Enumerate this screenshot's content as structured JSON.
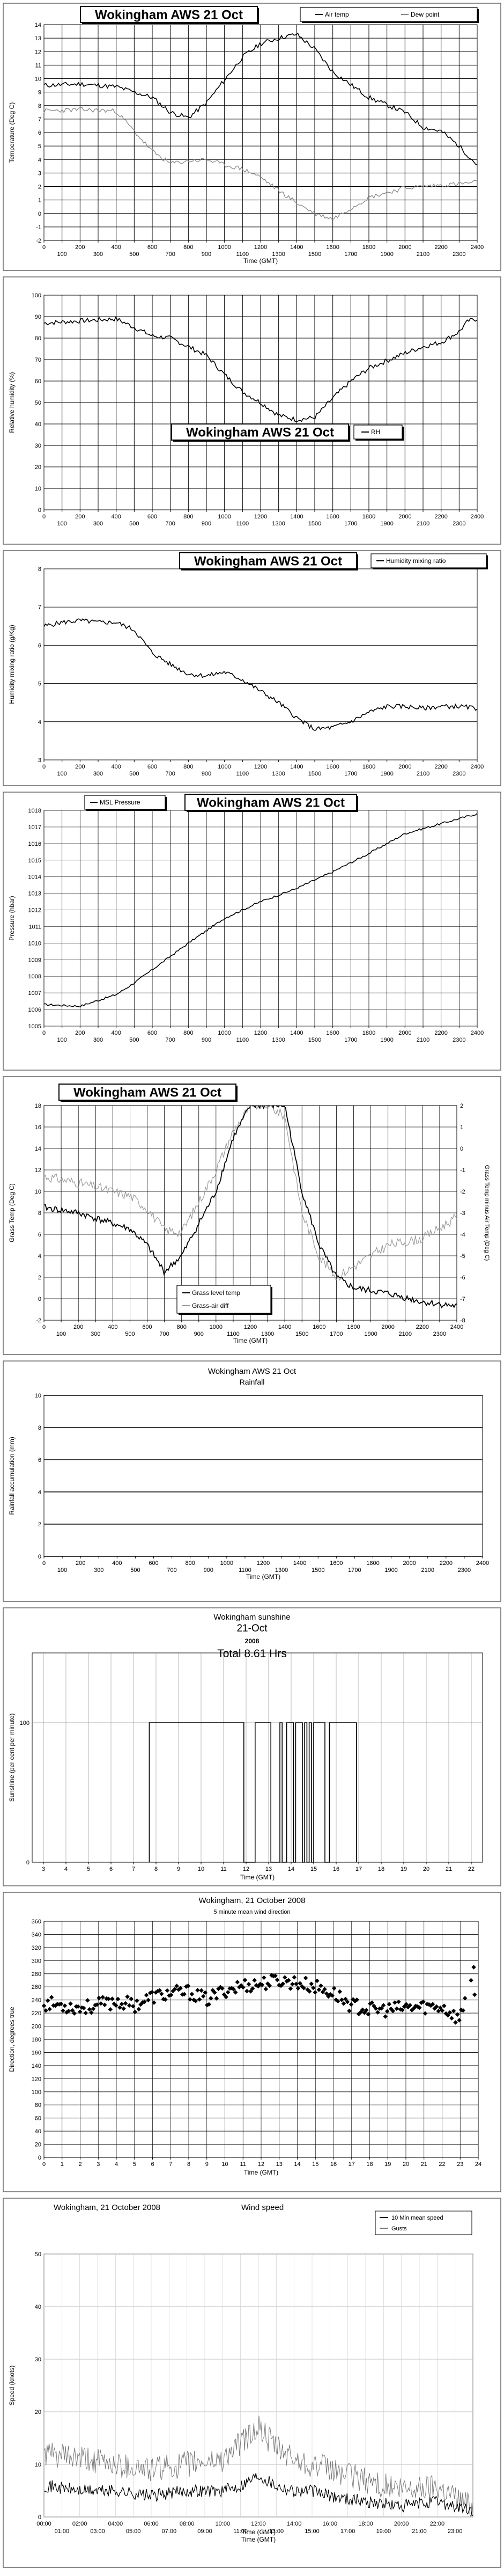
{
  "chart_data": [
    {
      "type": "line",
      "title": "Wokingham AWS 21 Oct",
      "xlabel": "Time (GMT)",
      "ylabel": "Temperature (Deg C)",
      "xlim": [
        0,
        2400
      ],
      "ylim": [
        -2,
        14
      ],
      "x_ticks": [
        "0",
        "100",
        "200",
        "300",
        "400",
        "500",
        "600",
        "700",
        "800",
        "900",
        "1000",
        "1100",
        "1200",
        "1300",
        "1400",
        "1500",
        "1600",
        "1700",
        "1800",
        "1900",
        "2000",
        "2100",
        "2200",
        "2300",
        "2400"
      ],
      "y_ticks": [
        "-2",
        "-1",
        "0",
        "1",
        "2",
        "3",
        "4",
        "5",
        "6",
        "7",
        "8",
        "9",
        "10",
        "11",
        "12",
        "13",
        "14"
      ],
      "legend": "top-right",
      "series": [
        {
          "name": "Air temp",
          "color": "#000000",
          "x": [
            0,
            200,
            400,
            600,
            700,
            800,
            900,
            1000,
            1100,
            1200,
            1300,
            1400,
            1500,
            1600,
            1800,
            2000,
            2100,
            2200,
            2300,
            2400
          ],
          "y": [
            9.5,
            9.6,
            9.4,
            8.6,
            7.5,
            7.1,
            8.2,
            9.9,
            11.6,
            12.6,
            13.0,
            13.3,
            12.2,
            10.5,
            8.6,
            7.5,
            6.4,
            6.1,
            5.0,
            3.6
          ]
        },
        {
          "name": "Dew point",
          "color": "#888888",
          "x": [
            0,
            200,
            400,
            600,
            700,
            800,
            900,
            1000,
            1100,
            1200,
            1300,
            1400,
            1500,
            1600,
            1800,
            2000,
            2100,
            2200,
            2300,
            2400
          ],
          "y": [
            7.6,
            7.7,
            7.6,
            4.6,
            3.7,
            3.9,
            4.0,
            3.6,
            3.3,
            2.7,
            1.7,
            0.8,
            0.0,
            -0.4,
            1.2,
            1.9,
            2.0,
            2.1,
            2.2,
            2.3
          ]
        }
      ]
    },
    {
      "type": "line",
      "title": "Wokingham AWS 21 Oct",
      "xlabel": "",
      "ylabel": "Relative humidity (%)",
      "xlim": [
        0,
        2400
      ],
      "ylim": [
        0,
        100
      ],
      "x_ticks": [
        "0",
        "100",
        "200",
        "300",
        "400",
        "500",
        "600",
        "700",
        "800",
        "900",
        "1000",
        "1100",
        "1200",
        "1300",
        "1400",
        "1500",
        "1600",
        "1700",
        "1800",
        "1900",
        "2000",
        "2100",
        "2200",
        "2300",
        "2400"
      ],
      "y_ticks": [
        "0",
        "10",
        "20",
        "30",
        "40",
        "50",
        "60",
        "70",
        "80",
        "90",
        "100"
      ],
      "legend": "bottom",
      "series": [
        {
          "name": "RH",
          "color": "#000000",
          "x": [
            0,
            200,
            400,
            600,
            700,
            800,
            900,
            1000,
            1100,
            1200,
            1300,
            1400,
            1500,
            1600,
            1700,
            1800,
            2000,
            2100,
            2200,
            2300,
            2350,
            2400
          ],
          "y": [
            87,
            88,
            89,
            81,
            80,
            76,
            72,
            63,
            55,
            50,
            44,
            42,
            43,
            52,
            60,
            66,
            73,
            76,
            78,
            83,
            88,
            89
          ]
        }
      ]
    },
    {
      "type": "line",
      "title": "Wokingham AWS 21 Oct",
      "xlabel": "",
      "ylabel": "Humidity mixing ratio (g/Kg)",
      "xlim": [
        0,
        2400
      ],
      "ylim": [
        3,
        8
      ],
      "x_ticks": [
        "0",
        "100",
        "200",
        "300",
        "400",
        "500",
        "600",
        "700",
        "800",
        "900",
        "1000",
        "1100",
        "1200",
        "1300",
        "1400",
        "1500",
        "1600",
        "1700",
        "1800",
        "1900",
        "2000",
        "2100",
        "2200",
        "2300",
        "2400"
      ],
      "y_ticks": [
        "3",
        "4",
        "5",
        "6",
        "7",
        "8"
      ],
      "legend": "top-right",
      "series": [
        {
          "name": "Humidity mixing ratio",
          "color": "#000000",
          "x": [
            0,
            100,
            200,
            300,
            400,
            500,
            600,
            700,
            800,
            900,
            1000,
            1100,
            1200,
            1300,
            1400,
            1500,
            1600,
            1700,
            1800,
            1900,
            2000,
            2100,
            2200,
            2300,
            2400
          ],
          "y": [
            6.5,
            6.6,
            6.65,
            6.6,
            6.6,
            6.4,
            5.8,
            5.5,
            5.25,
            5.2,
            5.3,
            5.1,
            4.8,
            4.5,
            4.1,
            3.8,
            3.85,
            4.0,
            4.25,
            4.4,
            4.4,
            4.35,
            4.4,
            4.4,
            4.35
          ]
        }
      ]
    },
    {
      "type": "line",
      "title": "Wokingham AWS 21 Oct",
      "xlabel": "",
      "ylabel": "Pressure (hbar)",
      "xlim": [
        0,
        2400
      ],
      "ylim": [
        1005,
        1018
      ],
      "x_ticks": [
        "0",
        "100",
        "200",
        "300",
        "400",
        "500",
        "600",
        "700",
        "800",
        "900",
        "1000",
        "1100",
        "1200",
        "1300",
        "1400",
        "1500",
        "1600",
        "1700",
        "1800",
        "1900",
        "2000",
        "2100",
        "2200",
        "2300",
        "2400"
      ],
      "y_ticks": [
        "1005",
        "1006",
        "1007",
        "1008",
        "1009",
        "1010",
        "1011",
        "1012",
        "1013",
        "1014",
        "1015",
        "1016",
        "1017",
        "1018"
      ],
      "legend": "top-left",
      "series": [
        {
          "name": "MSL Pressure",
          "color": "#000000",
          "x": [
            0,
            200,
            400,
            500,
            600,
            800,
            1000,
            1200,
            1400,
            1600,
            1800,
            2000,
            2200,
            2400
          ],
          "y": [
            1006.3,
            1006.2,
            1006.9,
            1007.6,
            1008.4,
            1010.0,
            1011.5,
            1012.5,
            1013.3,
            1014.3,
            1015.4,
            1016.6,
            1017.2,
            1017.8
          ]
        }
      ]
    },
    {
      "type": "line",
      "title": "Wokingham AWS 21 Oct",
      "xlabel": "Time (GMT)",
      "ylabel": "Grass Temp (Deg C)",
      "y2label": "Grass Temp minus Air Temp (Deg C)",
      "xlim": [
        0,
        2400
      ],
      "ylim": [
        -2,
        18
      ],
      "y2lim": [
        -8,
        2
      ],
      "x_ticks": [
        "0",
        "100",
        "200",
        "300",
        "400",
        "500",
        "600",
        "700",
        "800",
        "900",
        "1000",
        "1100",
        "1200",
        "1300",
        "1400",
        "1500",
        "1600",
        "1700",
        "1800",
        "1900",
        "2000",
        "2100",
        "2200",
        "2300",
        "2400"
      ],
      "y_ticks": [
        "-2",
        "0",
        "2",
        "4",
        "6",
        "8",
        "10",
        "12",
        "14",
        "16",
        "18"
      ],
      "y2_ticks": [
        "-8",
        "-7",
        "-6",
        "-5",
        "-4",
        "-3",
        "-2",
        "-1",
        "0",
        "1",
        "2"
      ],
      "legend": "bottom-center",
      "series": [
        {
          "name": "Grass level temp",
          "color": "#000000",
          "axis": "left",
          "x": [
            0,
            200,
            400,
            500,
            600,
            700,
            800,
            900,
            1000,
            1100,
            1200,
            1300,
            1400,
            1500,
            1600,
            1700,
            1800,
            2000,
            2200,
            2400
          ],
          "y": [
            8.5,
            8.0,
            7.0,
            6.5,
            5.0,
            2.5,
            4.0,
            7.0,
            10.0,
            15.0,
            18.0,
            18.0,
            18.0,
            10.0,
            5.0,
            2.0,
            1.0,
            0.5,
            -0.3,
            -0.7
          ]
        },
        {
          "name": "Grass-air diff",
          "color": "#999999",
          "axis": "right",
          "x": [
            0,
            200,
            400,
            500,
            600,
            700,
            800,
            900,
            1000,
            1100,
            1200,
            1300,
            1400,
            1500,
            1600,
            1700,
            1800,
            2000,
            2200,
            2400
          ],
          "y": [
            -1.3,
            -1.6,
            -2.0,
            -2.2,
            -2.8,
            -3.8,
            -3.9,
            -2.5,
            -1.0,
            0.8,
            2.0,
            2.0,
            1.5,
            -3.0,
            -5.0,
            -6.0,
            -5.5,
            -4.5,
            -4.2,
            -3.2
          ]
        }
      ]
    },
    {
      "type": "line",
      "title": "Wokingham AWS 21 Oct",
      "subtitle": "Rainfall",
      "xlabel": "Time (GMT)",
      "ylabel": "Rainfall accumulation (mm)",
      "xlim": [
        0,
        2400
      ],
      "ylim": [
        0,
        10
      ],
      "x_ticks": [
        "0",
        "100",
        "200",
        "300",
        "400",
        "500",
        "600",
        "700",
        "800",
        "900",
        "1000",
        "1100",
        "1200",
        "1300",
        "1400",
        "1500",
        "1600",
        "1700",
        "1800",
        "1900",
        "2000",
        "2100",
        "2200",
        "2300",
        "2400"
      ],
      "y_ticks": [
        "0",
        "2",
        "4",
        "6",
        "8",
        "10"
      ],
      "series": []
    },
    {
      "type": "line",
      "title": "Wokingham sunshine",
      "subtitle": "21-Oct",
      "year": "2008",
      "total": "Total 8.61 Hrs",
      "xlabel": "Time (GMT)",
      "ylabel": "Sunshine (per cent per minute)",
      "xlim": [
        2.5,
        22.5
      ],
      "ylim": [
        0,
        150
      ],
      "x_ticks": [
        "3",
        "4",
        "5",
        "6",
        "7",
        "8",
        "9",
        "10",
        "11",
        "12",
        "13",
        "14",
        "15",
        "16",
        "17",
        "18",
        "19",
        "20",
        "21",
        "22"
      ],
      "y_ticks": [
        "0",
        "100"
      ],
      "sunshine_segments": [
        [
          7.7,
          11.9
        ],
        [
          12.4,
          13.1
        ],
        [
          13.5,
          13.6
        ],
        [
          13.8,
          14.1
        ],
        [
          14.2,
          14.5
        ],
        [
          14.6,
          14.7
        ],
        [
          14.8,
          14.9
        ],
        [
          15.0,
          15.5
        ],
        [
          15.7,
          16.9
        ]
      ],
      "series": [
        {
          "name": "",
          "color": "#000000",
          "x": [
            7.7,
            11.9,
            12.4,
            13.1,
            13.5,
            13.6,
            13.8,
            14.1,
            14.2,
            14.5,
            14.6,
            14.7,
            14.8,
            14.9,
            15.0,
            15.5,
            15.7,
            16.9
          ],
          "y": [
            100,
            100,
            100,
            100,
            100,
            100,
            100,
            100,
            100,
            100,
            100,
            100,
            100,
            100,
            100,
            100,
            100,
            100
          ]
        }
      ]
    },
    {
      "type": "scatter",
      "title": "Wokingham,  21 October 2008",
      "subtitle": "5 minute mean wind direction",
      "xlabel": "Time (GMT)",
      "ylabel": "Direction, degrees true",
      "xlim": [
        0,
        24
      ],
      "ylim": [
        0,
        360
      ],
      "x_ticks": [
        "0",
        "1",
        "2",
        "3",
        "4",
        "5",
        "6",
        "7",
        "8",
        "9",
        "10",
        "11",
        "12",
        "13",
        "14",
        "15",
        "16",
        "17",
        "18",
        "19",
        "20",
        "21",
        "22",
        "23",
        "24"
      ],
      "y_ticks": [
        "0",
        "20",
        "40",
        "60",
        "80",
        "100",
        "120",
        "140",
        "160",
        "180",
        "200",
        "220",
        "240",
        "260",
        "280",
        "300",
        "320",
        "340",
        "360"
      ],
      "series": [
        {
          "name": "",
          "color": "#000000",
          "x": [
            0,
            1,
            2,
            3,
            4,
            5,
            6,
            7,
            8,
            9,
            10,
            11,
            12,
            13,
            14,
            15,
            16,
            17,
            18,
            19,
            20,
            21,
            22,
            22.5,
            23,
            23.5,
            24
          ],
          "y": [
            235,
            232,
            228,
            232,
            238,
            232,
            245,
            250,
            252,
            240,
            255,
            262,
            265,
            270,
            266,
            260,
            250,
            232,
            225,
            225,
            228,
            230,
            230,
            220,
            210,
            270,
            280
          ]
        }
      ]
    },
    {
      "type": "line",
      "title": "Wokingham,  21 October 2008",
      "subtitle": "Wind speed",
      "xlabel": "Time (GMT)",
      "ylabel": "Speed (knots)",
      "xlim": [
        0,
        24
      ],
      "ylim": [
        0,
        50
      ],
      "x_ticks_top": [
        "00:00",
        "02:00",
        "04:00",
        "06:00",
        "08:00",
        "10:00",
        "12:00",
        "14:00",
        "16:00",
        "18:00",
        "20:00",
        "22:00"
      ],
      "x_ticks_bottom": [
        "01:00",
        "03:00",
        "05:00",
        "07:00",
        "09:00",
        "11:00",
        "13:00",
        "15:00",
        "17:00",
        "19:00",
        "21:00",
        "23:00"
      ],
      "y_ticks": [
        "0",
        "10",
        "20",
        "30",
        "40",
        "50"
      ],
      "legend": "top-right",
      "series": [
        {
          "name": "10 Min mean speed",
          "color": "#000000",
          "x": [
            0,
            2,
            4,
            6,
            8,
            10,
            11,
            12,
            13,
            14,
            15,
            16,
            18,
            20,
            22,
            24
          ],
          "y": [
            6,
            5,
            5,
            4,
            5,
            5,
            6,
            8,
            6,
            5,
            5,
            4,
            3,
            2,
            3,
            1
          ]
        },
        {
          "name": "Gusts",
          "color": "#777777",
          "x": [
            0,
            2,
            4,
            6,
            8,
            10,
            11,
            12,
            13,
            14,
            15,
            16,
            18,
            20,
            22,
            24
          ],
          "y": [
            12,
            11,
            10,
            9,
            10,
            11,
            14,
            17,
            13,
            11,
            10,
            9,
            7,
            5,
            6,
            2
          ]
        }
      ]
    }
  ]
}
